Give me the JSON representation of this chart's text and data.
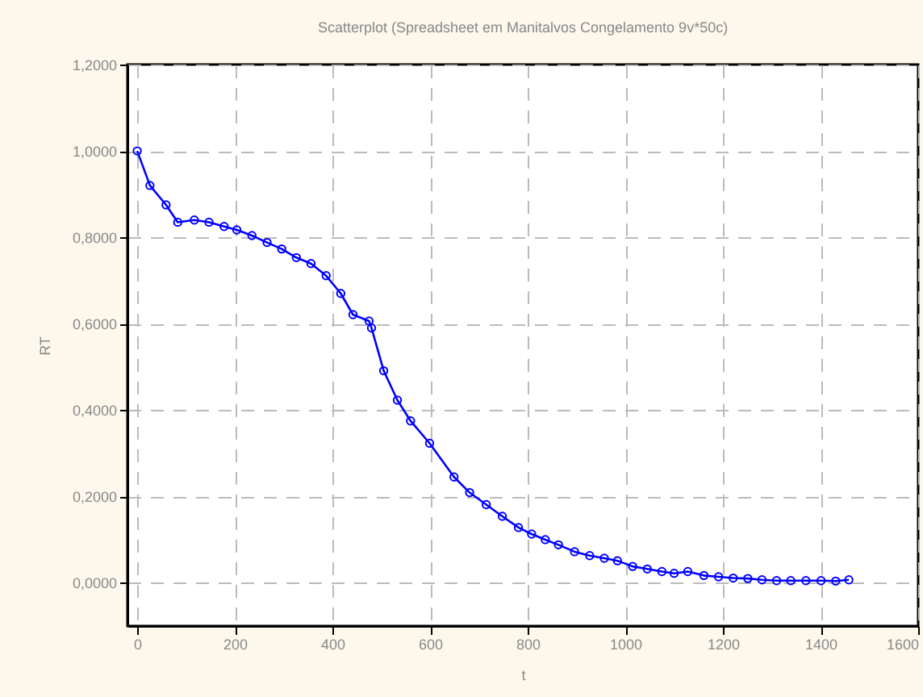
{
  "chart_data": {
    "type": "line",
    "title": "Scatterplot (Spreadsheet em Manitalvos Congelamento 9v*50c)",
    "xlabel": "t",
    "ylabel": "RT",
    "marker": "circle",
    "grid": true,
    "line_style": "solid",
    "xlim": [
      -20,
      1600
    ],
    "xticks": [
      0,
      200,
      400,
      600,
      800,
      1000,
      1200,
      1400,
      1600
    ],
    "ylim": [
      -0.1,
      1.2
    ],
    "yticks": [
      {
        "value": 0,
        "label": "0,0000"
      },
      {
        "value": 0.2,
        "label": "0,2000"
      },
      {
        "value": 0.4,
        "label": "0,4000"
      },
      {
        "value": 0.6,
        "label": "0,6000"
      },
      {
        "value": 0.8,
        "label": "0,8000"
      },
      {
        "value": 1,
        "label": "1,0000"
      },
      {
        "value": 1.2,
        "label": "1,2000"
      }
    ],
    "x": [
      0,
      26,
      59,
      83,
      117,
      147,
      178,
      204,
      235,
      266,
      296,
      326,
      356,
      387,
      417,
      442,
      475,
      480,
      505,
      533,
      560,
      599,
      649,
      681,
      715,
      748,
      781,
      808,
      836,
      863,
      896,
      927,
      957,
      984,
      1015,
      1045,
      1075,
      1100,
      1128,
      1161,
      1191,
      1221,
      1251,
      1280,
      1310,
      1339,
      1370,
      1401,
      1431,
      1458
    ],
    "series": [
      {
        "color": "#0000ff",
        "values": [
          1.0,
          0.92,
          0.875,
          0.835,
          0.84,
          0.835,
          0.825,
          0.817,
          0.804,
          0.788,
          0.773,
          0.753,
          0.739,
          0.711,
          0.67,
          0.621,
          0.606,
          0.59,
          0.491,
          0.423,
          0.375,
          0.323,
          0.245,
          0.209,
          0.181,
          0.154,
          0.128,
          0.113,
          0.1,
          0.088,
          0.072,
          0.063,
          0.057,
          0.051,
          0.038,
          0.032,
          0.026,
          0.022,
          0.026,
          0.017,
          0.014,
          0.011,
          0.01,
          0.007,
          0.005,
          0.005,
          0.005,
          0.005,
          0.004,
          0.007
        ]
      }
    ]
  }
}
